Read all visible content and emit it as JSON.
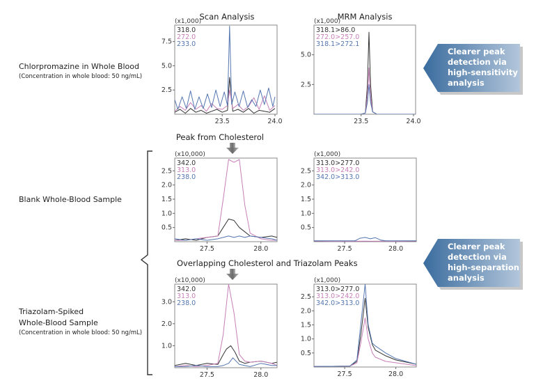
{
  "row_labels": [
    {
      "title": "Chlorpromazine in Whole Blood",
      "subtitle": "(Concentration in whole blood: 50 ng/mL)"
    },
    {
      "title": "Blank Whole-Blood Sample",
      "subtitle": ""
    },
    {
      "title_lines": [
        "Triazolam-Spiked",
        "Whole-Blood Sample"
      ],
      "subtitle": "(Concentration in whole blood: 50 ng/mL)"
    }
  ],
  "column_titles": [
    "Scan Analysis",
    "MRM Analysis"
  ],
  "section_titles": [
    "Peak from Cholesterol",
    "Overlapping Cholesterol and Triazolam Peaks"
  ],
  "callouts": [
    {
      "lines": [
        "Clearer peak",
        "detection via",
        "high-sensitivity",
        "analysis"
      ]
    },
    {
      "lines": [
        "Clearer peak",
        "detection via",
        "high-separation",
        "analysis"
      ]
    }
  ],
  "colors": {
    "black": "#333333",
    "pink": "#c77fb8",
    "blue": "#5476b0",
    "callout_dark": "#3a6c9e",
    "callout_light": "#b3c6db"
  },
  "chart_data": [
    {
      "id": "chlorpromazine-scan",
      "type": "line",
      "title": "Scan Analysis",
      "multiplier": "(x1,000)",
      "xlim": [
        23.05,
        24.02
      ],
      "ylim": [
        0,
        9.2
      ],
      "xticks": [
        23.5,
        24.0
      ],
      "xtick_labels": [
        "23.5",
        "24.0"
      ],
      "yticks": [
        2.5,
        5.0,
        7.5
      ],
      "ytick_labels": [
        "2.5",
        "5.0",
        "7.5"
      ],
      "series": [
        {
          "name": "318.0",
          "color": "black",
          "x": [
            23.05,
            23.1,
            23.15,
            23.2,
            23.25,
            23.3,
            23.35,
            23.4,
            23.45,
            23.5,
            23.55,
            23.57,
            23.6,
            23.65,
            23.7,
            23.75,
            23.8,
            23.85,
            23.9,
            23.95,
            24.0
          ],
          "y": [
            0.2,
            0.5,
            0.1,
            0.6,
            0.2,
            0.4,
            0.1,
            0.3,
            0.5,
            0.2,
            0.4,
            3.8,
            0.3,
            0.5,
            0.2,
            0.6,
            0.1,
            0.4,
            0.3,
            0.2,
            0.6
          ]
        },
        {
          "name": "272.0",
          "color": "pink",
          "x": [
            23.05,
            23.1,
            23.15,
            23.2,
            23.25,
            23.3,
            23.35,
            23.4,
            23.45,
            23.5,
            23.55,
            23.57,
            23.6,
            23.65,
            23.7,
            23.75,
            23.8,
            23.85,
            23.9,
            23.95,
            24.0
          ],
          "y": [
            0.3,
            0.8,
            0.4,
            1.2,
            0.5,
            0.9,
            0.3,
            1.1,
            0.6,
            0.5,
            0.9,
            2.5,
            0.6,
            1.0,
            0.4,
            0.8,
            1.7,
            0.5,
            1.9,
            0.4,
            0.9
          ]
        },
        {
          "name": "233.0",
          "color": "blue",
          "x": [
            23.05,
            23.08,
            23.12,
            23.16,
            23.2,
            23.24,
            23.28,
            23.32,
            23.36,
            23.4,
            23.44,
            23.48,
            23.52,
            23.55,
            23.57,
            23.59,
            23.62,
            23.66,
            23.7,
            23.74,
            23.78,
            23.82,
            23.86,
            23.9,
            23.94,
            23.98,
            24.0
          ],
          "y": [
            1.5,
            0.5,
            1.8,
            0.6,
            2.4,
            0.5,
            1.8,
            0.6,
            2.1,
            0.7,
            2.5,
            0.8,
            2.3,
            0.9,
            9.1,
            1.0,
            2.3,
            0.8,
            2.4,
            0.7,
            1.5,
            0.8,
            2.5,
            1.0,
            2.7,
            0.8,
            1.8
          ]
        }
      ]
    },
    {
      "id": "chlorpromazine-mrm",
      "type": "line",
      "title": "MRM Analysis",
      "multiplier": "(x1,000)",
      "xlim": [
        23.05,
        24.02
      ],
      "ylim": [
        0,
        7.5
      ],
      "xticks": [
        23.5,
        24.0
      ],
      "xtick_labels": [
        "23.5",
        "24.0"
      ],
      "yticks": [
        2.5,
        5.0
      ],
      "ytick_labels": [
        "2.5",
        "5.0"
      ],
      "series": [
        {
          "name": "318.1>86.0",
          "color": "black",
          "x": [
            23.05,
            23.5,
            23.54,
            23.56,
            23.575,
            23.59,
            23.61,
            23.65,
            24.02
          ],
          "y": [
            0,
            0,
            0.1,
            2.5,
            6.9,
            2.5,
            0.2,
            0,
            0
          ]
        },
        {
          "name": "272.0>257.0",
          "color": "pink",
          "x": [
            23.05,
            23.5,
            23.54,
            23.56,
            23.575,
            23.59,
            23.61,
            23.65,
            24.02
          ],
          "y": [
            0,
            0,
            0.1,
            1.5,
            3.9,
            1.5,
            0.2,
            0,
            0
          ]
        },
        {
          "name": "318.1>272.1",
          "color": "blue",
          "x": [
            23.05,
            23.5,
            23.54,
            23.56,
            23.575,
            23.59,
            23.61,
            23.65,
            24.02
          ],
          "y": [
            0,
            0,
            0.1,
            1.0,
            2.5,
            1.0,
            0.2,
            0,
            0
          ]
        }
      ]
    },
    {
      "id": "blank-scan",
      "type": "line",
      "title": "Peak from Cholesterol",
      "multiplier": "(x10,000)",
      "xlim": [
        27.2,
        28.15
      ],
      "ylim": [
        0,
        2.95
      ],
      "xticks": [
        27.5,
        28.0
      ],
      "xtick_labels": [
        "27.5",
        "28.0"
      ],
      "yticks": [
        0.5,
        1.0,
        1.5,
        2.0,
        2.5
      ],
      "ytick_labels": [
        "0.5",
        "1.0",
        "1.5",
        "2.0",
        "2.5"
      ],
      "series": [
        {
          "name": "342.0",
          "color": "black",
          "x": [
            27.2,
            27.3,
            27.4,
            27.5,
            27.6,
            27.65,
            27.7,
            27.75,
            27.8,
            27.85,
            27.9,
            28.0,
            28.1,
            28.15
          ],
          "y": [
            0.05,
            0.1,
            0.05,
            0.15,
            0.2,
            0.5,
            0.8,
            0.75,
            0.5,
            0.35,
            0.2,
            0.15,
            0.2,
            0.15
          ]
        },
        {
          "name": "313.0",
          "color": "pink",
          "x": [
            27.2,
            27.3,
            27.4,
            27.5,
            27.6,
            27.65,
            27.7,
            27.75,
            27.8,
            27.85,
            27.9,
            28.0,
            28.1,
            28.15
          ],
          "y": [
            0.05,
            0.05,
            0.1,
            0.15,
            0.2,
            1.5,
            2.9,
            2.8,
            2.9,
            1.3,
            0.3,
            0.1,
            0.05,
            0.05
          ]
        },
        {
          "name": "238.0",
          "color": "blue",
          "x": [
            27.2,
            27.3,
            27.4,
            27.5,
            27.6,
            27.65,
            27.7,
            27.75,
            27.8,
            27.85,
            27.9,
            28.0,
            28.1,
            28.15
          ],
          "y": [
            0.1,
            0.05,
            0.1,
            0.05,
            0.1,
            0.15,
            0.2,
            0.15,
            0.2,
            0.15,
            0.2,
            0.15,
            0.1,
            0.05
          ]
        }
      ]
    },
    {
      "id": "blank-mrm",
      "type": "line",
      "title": "",
      "multiplier": "(x1,000)",
      "xlim": [
        27.2,
        28.2
      ],
      "ylim": [
        0,
        2.95
      ],
      "xticks": [
        27.5,
        28.0
      ],
      "xtick_labels": [
        "27.5",
        "28.0"
      ],
      "yticks": [
        0.5,
        1.0,
        1.5,
        2.0,
        2.5
      ],
      "ytick_labels": [
        "0.5",
        "1.0",
        "1.5",
        "2.0",
        "2.5"
      ],
      "series": [
        {
          "name": "313.0>277.0",
          "color": "black",
          "x": [
            27.2,
            27.5,
            27.7,
            27.9,
            28.2
          ],
          "y": [
            0.01,
            0.02,
            0.01,
            0.02,
            0.01
          ]
        },
        {
          "name": "313.0>242.0",
          "color": "pink",
          "x": [
            27.2,
            27.5,
            27.7,
            27.9,
            28.2
          ],
          "y": [
            0.02,
            0.01,
            0.02,
            0.01,
            0.02
          ]
        },
        {
          "name": "342.0>313.0",
          "color": "blue",
          "x": [
            27.2,
            27.6,
            27.65,
            27.7,
            27.75,
            27.8,
            27.85,
            27.9,
            28.2
          ],
          "y": [
            0.03,
            0.03,
            0.12,
            0.15,
            0.1,
            0.14,
            0.06,
            0.03,
            0.03
          ]
        }
      ]
    },
    {
      "id": "triazolam-scan",
      "type": "line",
      "title": "Overlapping Cholesterol and Triazolam Peaks",
      "multiplier": "(x10,000)",
      "xlim": [
        27.2,
        28.15
      ],
      "ylim": [
        0,
        3.8
      ],
      "xticks": [
        27.5,
        28.0
      ],
      "xtick_labels": [
        "27.5",
        "28.0"
      ],
      "yticks": [
        1.0,
        2.0,
        3.0
      ],
      "ytick_labels": [
        "1.0",
        "2.0",
        "3.0"
      ],
      "series": [
        {
          "name": "342.0",
          "color": "black",
          "x": [
            27.2,
            27.3,
            27.4,
            27.5,
            27.6,
            27.65,
            27.68,
            27.72,
            27.76,
            27.8,
            27.85,
            27.9,
            28.0,
            28.1,
            28.15
          ],
          "y": [
            0.1,
            0.2,
            0.1,
            0.2,
            0.15,
            0.6,
            0.85,
            1.0,
            0.7,
            0.3,
            0.2,
            0.25,
            0.3,
            0.2,
            0.25
          ]
        },
        {
          "name": "313.0",
          "color": "pink",
          "x": [
            27.2,
            27.3,
            27.4,
            27.5,
            27.6,
            27.65,
            27.7,
            27.75,
            27.8,
            27.85,
            27.9,
            28.0,
            28.1,
            28.15
          ],
          "y": [
            0.05,
            0.1,
            0.05,
            0.1,
            0.2,
            1.5,
            3.8,
            2.5,
            0.6,
            0.3,
            0.25,
            0.3,
            0.2,
            0.1
          ]
        },
        {
          "name": "238.0",
          "color": "blue",
          "x": [
            27.2,
            27.3,
            27.4,
            27.5,
            27.6,
            27.65,
            27.7,
            27.74,
            27.8,
            27.9,
            28.0,
            28.1,
            28.15
          ],
          "y": [
            0.05,
            0.05,
            0.1,
            0.05,
            0.05,
            0.1,
            0.2,
            0.45,
            0.15,
            0.05,
            0.2,
            0.1,
            0.1
          ]
        }
      ]
    },
    {
      "id": "triazolam-mrm",
      "type": "line",
      "title": "",
      "multiplier": "(x1,000)",
      "xlim": [
        27.2,
        28.2
      ],
      "ylim": [
        0,
        2.95
      ],
      "xticks": [
        27.5,
        28.0
      ],
      "xtick_labels": [
        "27.5",
        "28.0"
      ],
      "yticks": [
        0.5,
        1.0,
        1.5,
        2.0,
        2.5
      ],
      "ytick_labels": [
        "0.5",
        "1.0",
        "1.5",
        "2.0",
        "2.5"
      ],
      "series": [
        {
          "name": "313.0>277.0",
          "color": "black",
          "x": [
            27.2,
            27.55,
            27.62,
            27.66,
            27.7,
            27.73,
            27.77,
            27.8,
            27.9,
            28.0,
            28.2
          ],
          "y": [
            0.02,
            0.03,
            0.2,
            1.2,
            2.45,
            1.4,
            0.8,
            0.6,
            0.4,
            0.25,
            0.1
          ]
        },
        {
          "name": "313.0>242.0",
          "color": "pink",
          "x": [
            27.2,
            27.55,
            27.62,
            27.66,
            27.7,
            27.73,
            27.77,
            27.8,
            27.9,
            28.0,
            28.2
          ],
          "y": [
            0.02,
            0.03,
            0.15,
            0.9,
            1.75,
            1.0,
            0.5,
            0.35,
            0.2,
            0.15,
            0.05
          ]
        },
        {
          "name": "342.0>313.0",
          "color": "blue",
          "x": [
            27.2,
            27.55,
            27.62,
            27.66,
            27.7,
            27.73,
            27.77,
            27.8,
            27.9,
            28.0,
            28.2
          ],
          "y": [
            0.02,
            0.03,
            0.25,
            1.6,
            2.95,
            1.5,
            0.85,
            0.75,
            0.5,
            0.3,
            0.1
          ]
        }
      ]
    }
  ]
}
